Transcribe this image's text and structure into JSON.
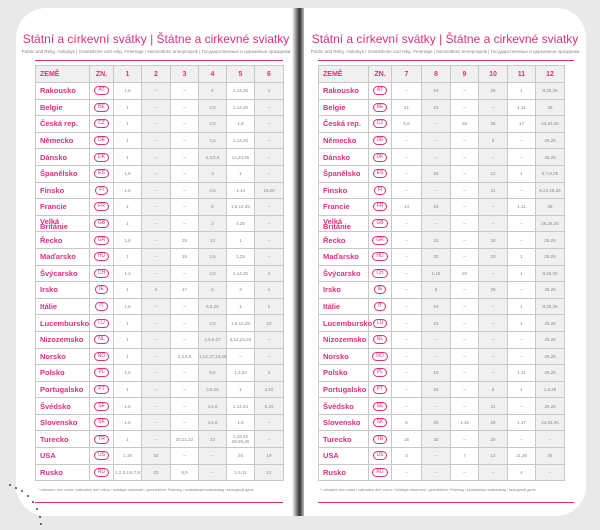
{
  "title": "Státní a církevní svátky | Štátne a cirkevné sviatky",
  "subtitle": "Public and Relig. Holidays | Gesetzliche und relig. Feiertage | Nemzetközi ünnepnapok | Государственные и церковные праздники",
  "footnote": "* náhradní den volna / náhradný deň volna / holidays observed / gesetzlicher Feiertag / szabadnapi szabadság / выходной день",
  "accent_color": "#e0307a",
  "headers": {
    "country": "ZEMĚ",
    "code": "ZN."
  },
  "left": {
    "months": [
      "1",
      "2",
      "3",
      "4",
      "5",
      "6"
    ],
    "rows": [
      {
        "country": "Rakousko",
        "code": "AT",
        "values": [
          "1,6",
          "–",
          "–",
          "6",
          "1,14,25",
          "4"
        ]
      },
      {
        "country": "Belgie",
        "code": "BE",
        "values": [
          "1",
          "–",
          "–",
          "2,6",
          "1,14,25",
          "–"
        ]
      },
      {
        "country": "Česká rep.",
        "code": "CZ",
        "values": [
          "1",
          "–",
          "–",
          "2,6",
          "1,8",
          "–"
        ]
      },
      {
        "country": "Německo",
        "code": "DE",
        "values": [
          "1",
          "–",
          "–",
          "2,6",
          "1,14,25",
          "–"
        ]
      },
      {
        "country": "Dánsko",
        "code": "DK",
        "values": [
          "1",
          "–",
          "–",
          "2,3,5,6",
          "14,24,25",
          "–"
        ]
      },
      {
        "country": "Španělsko",
        "code": "ES",
        "values": [
          "1,6",
          "–",
          "–",
          "3",
          "1",
          "–"
        ]
      },
      {
        "country": "Finsko",
        "code": "FI",
        "values": [
          "1,6",
          "–",
          "–",
          "2,6",
          "1,14",
          "19,20"
        ]
      },
      {
        "country": "Francie",
        "code": "FR",
        "values": [
          "1",
          "–",
          "–",
          "6",
          "1,8,14,25",
          "–"
        ]
      },
      {
        "country": "Velká Británie",
        "code": "GB",
        "values": [
          "1",
          "–",
          "–",
          "3",
          "4,25",
          "–"
        ]
      },
      {
        "country": "Řecko",
        "code": "GR",
        "values": [
          "1,6",
          "–",
          "25",
          "13",
          "1",
          "–"
        ]
      },
      {
        "country": "Maďarsko",
        "code": "HU",
        "values": [
          "1",
          "–",
          "15",
          "2,6",
          "1,25",
          "–"
        ]
      },
      {
        "country": "Švýcarsko",
        "code": "CH",
        "values": [
          "1,2",
          "–",
          "–",
          "2,6",
          "1,14,25",
          "4"
        ]
      },
      {
        "country": "Irsko",
        "code": "IE",
        "values": [
          "1",
          "2",
          "17",
          "6",
          "4",
          "1"
        ]
      },
      {
        "country": "Itálie",
        "code": "IT",
        "values": [
          "1,6",
          "–",
          "–",
          "5,6,25",
          "1",
          "2"
        ]
      },
      {
        "country": "Lucembursko",
        "code": "LU",
        "values": [
          "1",
          "–",
          "–",
          "2,6",
          "1,9,14,25",
          "23"
        ]
      },
      {
        "country": "Nizozemsko",
        "code": "NL",
        "values": [
          "1",
          "–",
          "–",
          "2,5,6,27",
          "5,14,24,25",
          "–"
        ]
      },
      {
        "country": "Norsko",
        "code": "NO",
        "values": [
          "1",
          "–",
          "2,3,5,6",
          "1,14,17,24,25",
          "–",
          "–"
        ]
      },
      {
        "country": "Polsko",
        "code": "PL",
        "values": [
          "1,6",
          "–",
          "–",
          "5,6",
          "1,3,24",
          "4"
        ]
      },
      {
        "country": "Portugalsko",
        "code": "PT",
        "values": [
          "1",
          "–",
          "–",
          "3,5,25",
          "1",
          "4,10"
        ]
      },
      {
        "country": "Švédsko",
        "code": "SE",
        "values": [
          "1,6",
          "–",
          "–",
          "3,5,6",
          "1,14,24",
          "6,20"
        ]
      },
      {
        "country": "Slovensko",
        "code": "SK",
        "values": [
          "1,6",
          "–",
          "–",
          "3,5,6",
          "1,8",
          "–"
        ]
      },
      {
        "country": "Turecko",
        "code": "TR",
        "values": [
          "1",
          "–",
          "20,21,22",
          "23",
          "1,19,22 28,29,30",
          "–"
        ]
      },
      {
        "country": "USA",
        "code": "US",
        "values": [
          "1,19",
          "16",
          "–",
          "–",
          "25",
          "19"
        ]
      },
      {
        "country": "Rusko",
        "code": "RU",
        "values": [
          "1,2,3,4,6,7,8",
          "23",
          "8,9",
          "–",
          "1,9,11",
          "12"
        ]
      }
    ]
  },
  "right": {
    "months": [
      "7",
      "8",
      "9",
      "10",
      "11",
      "12"
    ],
    "rows": [
      {
        "country": "Rakousko",
        "code": "AT",
        "values": [
          "–",
          "15",
          "–",
          "26",
          "1",
          "8,25,26"
        ]
      },
      {
        "country": "Belgie",
        "code": "BE",
        "values": [
          "21",
          "15",
          "–",
          "–",
          "1,11",
          "25"
        ]
      },
      {
        "country": "Česká rep.",
        "code": "CZ",
        "values": [
          "5,6",
          "–",
          "28",
          "28",
          "17",
          "24,25,26"
        ]
      },
      {
        "country": "Německo",
        "code": "DE",
        "values": [
          "–",
          "–",
          "–",
          "3",
          "–",
          "25,26"
        ]
      },
      {
        "country": "Dánsko",
        "code": "DK",
        "values": [
          "–",
          "–",
          "–",
          "–",
          "–",
          "25,26"
        ]
      },
      {
        "country": "Španělsko",
        "code": "ES",
        "values": [
          "–",
          "15",
          "–",
          "12",
          "1",
          "6,7,8,25"
        ]
      },
      {
        "country": "Finsko",
        "code": "FI",
        "values": [
          "–",
          "–",
          "–",
          "31",
          "–",
          "6,24,25,26"
        ]
      },
      {
        "country": "Francie",
        "code": "FR",
        "values": [
          "14",
          "15",
          "–",
          "–",
          "1,11",
          "25"
        ]
      },
      {
        "country": "Velká Británie",
        "code": "GB",
        "values": [
          "–",
          "–",
          "–",
          "–",
          "–",
          "25,26,28"
        ]
      },
      {
        "country": "Řecko",
        "code": "GR",
        "values": [
          "–",
          "15",
          "–",
          "28",
          "–",
          "25,26"
        ]
      },
      {
        "country": "Maďarsko",
        "code": "HU",
        "values": [
          "–",
          "20",
          "–",
          "23",
          "1",
          "25,26"
        ]
      },
      {
        "country": "Švýcarsko",
        "code": "CH",
        "values": [
          "–",
          "1,15",
          "20",
          "–",
          "1",
          "8,25,26"
        ]
      },
      {
        "country": "Irsko",
        "code": "IE",
        "values": [
          "–",
          "5",
          "–",
          "26",
          "–",
          "25,26"
        ]
      },
      {
        "country": "Itálie",
        "code": "IT",
        "values": [
          "–",
          "15",
          "–",
          "–",
          "1",
          "8,25,26"
        ]
      },
      {
        "country": "Lucembursko",
        "code": "LU",
        "values": [
          "–",
          "15",
          "–",
          "–",
          "1",
          "25,26"
        ]
      },
      {
        "country": "Nizozemsko",
        "code": "NL",
        "values": [
          "–",
          "–",
          "–",
          "–",
          "–",
          "25,26"
        ]
      },
      {
        "country": "Norsko",
        "code": "NO",
        "values": [
          "–",
          "–",
          "–",
          "–",
          "–",
          "25,26"
        ]
      },
      {
        "country": "Polsko",
        "code": "PL",
        "values": [
          "–",
          "15",
          "–",
          "–",
          "1,11",
          "25,26"
        ]
      },
      {
        "country": "Portugalsko",
        "code": "PT",
        "values": [
          "–",
          "15",
          "–",
          "5",
          "1",
          "1,8,25"
        ]
      },
      {
        "country": "Švédsko",
        "code": "SE",
        "values": [
          "–",
          "–",
          "–",
          "31",
          "–",
          "25,26"
        ]
      },
      {
        "country": "Slovensko",
        "code": "SK",
        "values": [
          "5",
          "29",
          "1,15",
          "28",
          "1,17",
          "24,25,26"
        ]
      },
      {
        "country": "Turecko",
        "code": "TR",
        "values": [
          "15",
          "30",
          "–",
          "29",
          "–",
          "–"
        ]
      },
      {
        "country": "USA",
        "code": "US",
        "values": [
          "3",
          "–",
          "7",
          "12",
          "11,26",
          "25"
        ]
      },
      {
        "country": "Rusko",
        "code": "RU",
        "values": [
          "–",
          "–",
          "–",
          "–",
          "4",
          "–"
        ]
      }
    ]
  }
}
